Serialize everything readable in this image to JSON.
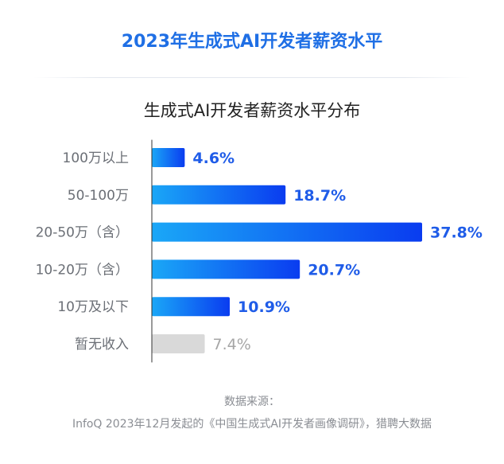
{
  "header": {
    "title": "2023年生成式AI开发者薪资水平"
  },
  "chart_data": {
    "type": "bar",
    "orientation": "horizontal",
    "title": "生成式AI开发者薪资水平分布",
    "categories": [
      "100万以上",
      "50-100万",
      "20-50万（含）",
      "10-20万（含）",
      "10万及以下",
      "暂无收入"
    ],
    "values": [
      4.6,
      18.7,
      37.8,
      20.7,
      10.9,
      7.4
    ],
    "value_labels": [
      "4.6%",
      "18.7%",
      "37.8%",
      "20.7%",
      "10.9%",
      "7.4%"
    ],
    "unit": "%",
    "xlim": [
      0,
      37.8
    ],
    "grid": false,
    "colors": {
      "bar_gradient_start": "#1aa7f7",
      "bar_gradient_end": "#0a3cf0",
      "no_income_bar": "#d9d9d9",
      "value_label": "#1f5ce8",
      "no_income_label": "#a6a6a6",
      "category_label": "#6b6f76",
      "axis": "#333333"
    }
  },
  "source": {
    "label": "数据来源：",
    "text": "InfoQ 2023年12月发起的《中国生成式AI开发者画像调研》，猎聘大数据"
  }
}
